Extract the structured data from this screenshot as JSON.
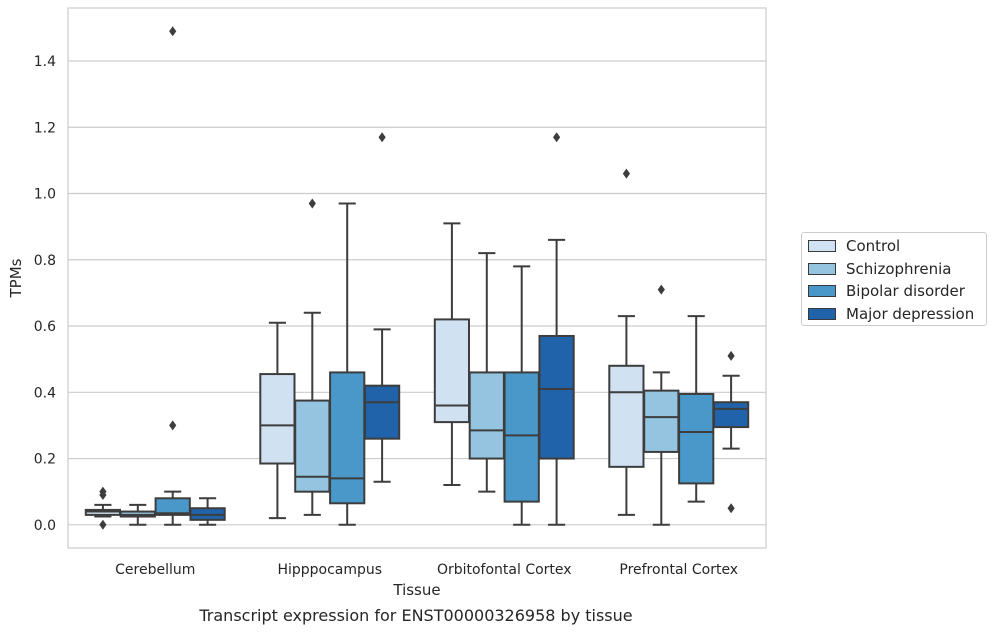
{
  "chart_data": {
    "type": "box",
    "title": "",
    "caption": "Transcript expression for ENST00000326958 by tissue",
    "xlabel": "Tissue",
    "ylabel": "TPMs",
    "ylim": [
      -0.07,
      1.56
    ],
    "yticks": [
      "0.0",
      "0.2",
      "0.4",
      "0.6",
      "0.8",
      "1.0",
      "1.2",
      "1.4"
    ],
    "grid": "horizontal",
    "legend_position": "right",
    "categories": [
      "Cerebellum",
      "Hipppocampus",
      "Orbitofontal Cortex",
      "Prefrontal Cortex"
    ],
    "series": [
      {
        "name": "Control",
        "color": "#d0e1f2",
        "boxes": [
          {
            "whislo": 0.025,
            "q1": 0.03,
            "med": 0.04,
            "q3": 0.045,
            "whishi": 0.06,
            "fliers": [
              0.0,
              0.09,
              0.1
            ]
          },
          {
            "whislo": 0.02,
            "q1": 0.185,
            "med": 0.3,
            "q3": 0.455,
            "whishi": 0.61,
            "fliers": []
          },
          {
            "whislo": 0.12,
            "q1": 0.31,
            "med": 0.36,
            "q3": 0.62,
            "whishi": 0.91,
            "fliers": []
          },
          {
            "whislo": 0.03,
            "q1": 0.175,
            "med": 0.4,
            "q3": 0.48,
            "whishi": 0.63,
            "fliers": [
              1.06
            ]
          }
        ]
      },
      {
        "name": "Schizophrenia",
        "color": "#94c4df",
        "boxes": [
          {
            "whislo": 0.0,
            "q1": 0.025,
            "med": 0.03,
            "q3": 0.04,
            "whishi": 0.06,
            "fliers": []
          },
          {
            "whislo": 0.03,
            "q1": 0.1,
            "med": 0.145,
            "q3": 0.375,
            "whishi": 0.64,
            "fliers": [
              0.97
            ]
          },
          {
            "whislo": 0.1,
            "q1": 0.2,
            "med": 0.285,
            "q3": 0.46,
            "whishi": 0.82,
            "fliers": []
          },
          {
            "whislo": 0.0,
            "q1": 0.22,
            "med": 0.325,
            "q3": 0.405,
            "whishi": 0.46,
            "fliers": [
              0.71
            ]
          }
        ]
      },
      {
        "name": "Bipolar disorder",
        "color": "#4a98c9",
        "boxes": [
          {
            "whislo": 0.0,
            "q1": 0.03,
            "med": 0.035,
            "q3": 0.08,
            "whishi": 0.1,
            "fliers": [
              0.3,
              1.49
            ]
          },
          {
            "whislo": 0.0,
            "q1": 0.065,
            "med": 0.14,
            "q3": 0.46,
            "whishi": 0.97,
            "fliers": []
          },
          {
            "whislo": 0.0,
            "q1": 0.07,
            "med": 0.27,
            "q3": 0.46,
            "whishi": 0.78,
            "fliers": []
          },
          {
            "whislo": 0.07,
            "q1": 0.125,
            "med": 0.28,
            "q3": 0.395,
            "whishi": 0.63,
            "fliers": []
          }
        ]
      },
      {
        "name": "Major depression",
        "color": "#2163aa",
        "boxes": [
          {
            "whislo": 0.0,
            "q1": 0.015,
            "med": 0.03,
            "q3": 0.05,
            "whishi": 0.08,
            "fliers": []
          },
          {
            "whislo": 0.13,
            "q1": 0.26,
            "med": 0.37,
            "q3": 0.42,
            "whishi": 0.59,
            "fliers": [
              1.17
            ]
          },
          {
            "whislo": 0.0,
            "q1": 0.2,
            "med": 0.41,
            "q3": 0.57,
            "whishi": 0.86,
            "fliers": [
              1.17
            ]
          },
          {
            "whislo": 0.23,
            "q1": 0.295,
            "med": 0.35,
            "q3": 0.37,
            "whishi": 0.45,
            "fliers": [
              0.05,
              0.51
            ]
          }
        ]
      }
    ]
  }
}
